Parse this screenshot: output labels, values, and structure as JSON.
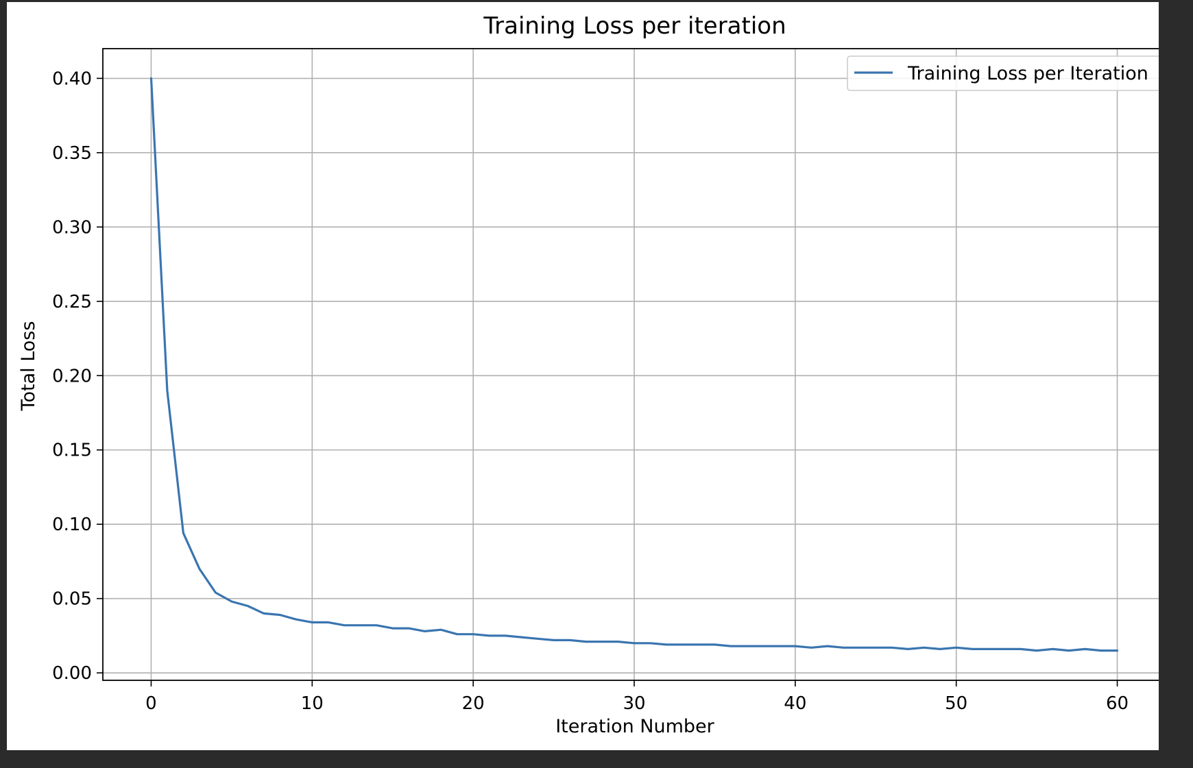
{
  "chart_data": {
    "type": "line",
    "title": "Training Loss per iteration",
    "xlabel": "Iteration Number",
    "ylabel": "Total Loss",
    "xlim": [
      -3,
      63
    ],
    "ylim": [
      -0.005,
      0.42
    ],
    "xticks": [
      0,
      10,
      20,
      30,
      40,
      50,
      60
    ],
    "xtick_labels": [
      "0",
      "10",
      "20",
      "30",
      "40",
      "50",
      "60"
    ],
    "yticks": [
      0.0,
      0.05,
      0.1,
      0.15,
      0.2,
      0.25,
      0.3,
      0.35,
      0.4
    ],
    "ytick_labels": [
      "0.00",
      "0.05",
      "0.10",
      "0.15",
      "0.20",
      "0.25",
      "0.30",
      "0.35",
      "0.40"
    ],
    "grid": true,
    "legend_position": "top-right",
    "series": [
      {
        "name": "Training Loss per Iteration",
        "color": "#3a75b0",
        "x": [
          0,
          1,
          2,
          3,
          4,
          5,
          6,
          7,
          8,
          9,
          10,
          11,
          12,
          13,
          14,
          15,
          16,
          17,
          18,
          19,
          20,
          21,
          22,
          23,
          24,
          25,
          26,
          27,
          28,
          29,
          30,
          31,
          32,
          33,
          34,
          35,
          36,
          37,
          38,
          39,
          40,
          41,
          42,
          43,
          44,
          45,
          46,
          47,
          48,
          49,
          50,
          51,
          52,
          53,
          54,
          55,
          56,
          57,
          58,
          59,
          60
        ],
        "y": [
          0.4,
          0.19,
          0.094,
          0.07,
          0.054,
          0.048,
          0.045,
          0.04,
          0.039,
          0.036,
          0.034,
          0.034,
          0.032,
          0.032,
          0.032,
          0.03,
          0.03,
          0.028,
          0.029,
          0.026,
          0.026,
          0.025,
          0.025,
          0.024,
          0.023,
          0.022,
          0.022,
          0.021,
          0.021,
          0.021,
          0.02,
          0.02,
          0.019,
          0.019,
          0.019,
          0.019,
          0.018,
          0.018,
          0.018,
          0.018,
          0.018,
          0.017,
          0.018,
          0.017,
          0.017,
          0.017,
          0.017,
          0.016,
          0.017,
          0.016,
          0.017,
          0.016,
          0.016,
          0.016,
          0.016,
          0.015,
          0.016,
          0.015,
          0.016,
          0.015,
          0.015
        ]
      }
    ]
  }
}
